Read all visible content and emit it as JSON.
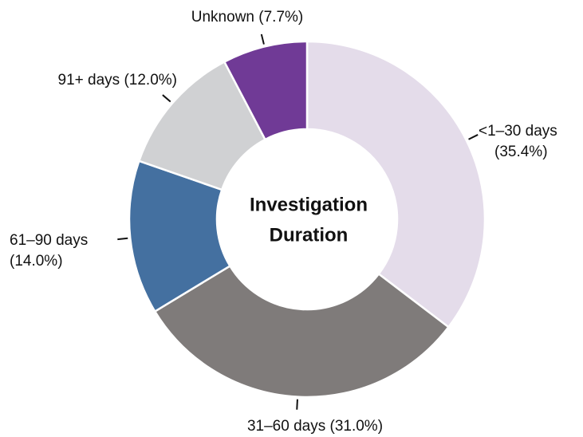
{
  "chart_data": {
    "type": "donut",
    "center_label": [
      "Investigation",
      "Duration"
    ],
    "categories": [
      "<1–30 days",
      "31–60 days",
      "61–90 days",
      "91+ days",
      "Unknown"
    ],
    "values": [
      35.4,
      31.0,
      14.0,
      12.0,
      7.7
    ],
    "value_labels": [
      "(35.4%)",
      "(31.0%)",
      "(14.0%)",
      "(12.0%)",
      "(7.7%)"
    ],
    "colors": [
      "#e4dcea",
      "#7f7b7a",
      "#4470a0",
      "#d0d1d3",
      "#703a96"
    ]
  }
}
